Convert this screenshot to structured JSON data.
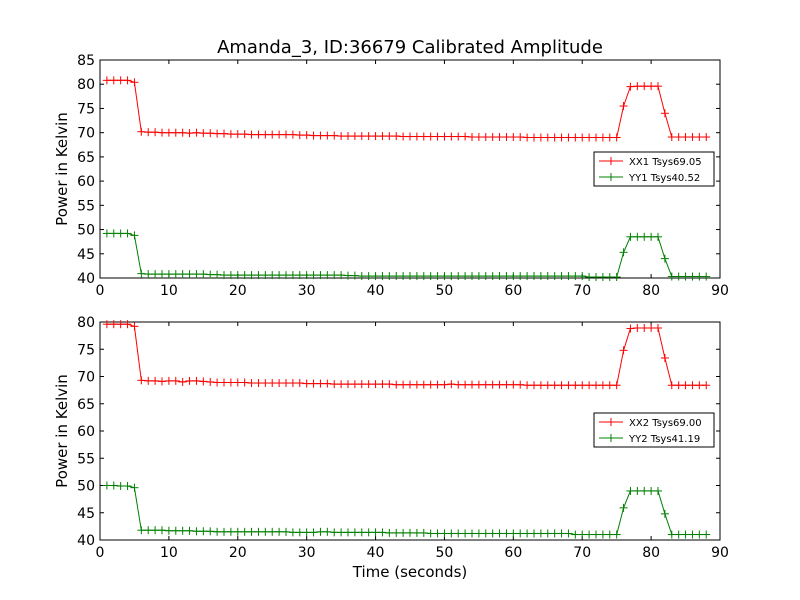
{
  "figure": {
    "title": "Amanda_3, ID:36679 Calibrated Amplitude"
  },
  "colors": {
    "xx": "#ff0000",
    "yy": "#008000"
  },
  "chart_data": [
    {
      "type": "line",
      "title": "Amanda_3, ID:36679 Calibrated Amplitude",
      "xlabel": "",
      "ylabel": "Power in Kelvin",
      "xlim": [
        0,
        90
      ],
      "ylim": [
        40,
        85
      ],
      "xticks": [
        0,
        10,
        20,
        30,
        40,
        50,
        60,
        70,
        80,
        90
      ],
      "yticks": [
        40,
        45,
        50,
        55,
        60,
        65,
        70,
        75,
        80,
        85
      ],
      "grid": false,
      "legend_position": "right",
      "x": [
        1,
        2,
        3,
        4,
        5,
        6,
        7,
        8,
        9,
        10,
        11,
        12,
        13,
        14,
        15,
        16,
        17,
        18,
        19,
        20,
        21,
        22,
        23,
        24,
        25,
        26,
        27,
        28,
        29,
        30,
        31,
        32,
        33,
        34,
        35,
        36,
        37,
        38,
        39,
        40,
        41,
        42,
        43,
        44,
        45,
        46,
        47,
        48,
        49,
        50,
        51,
        52,
        53,
        54,
        55,
        56,
        57,
        58,
        59,
        60,
        61,
        62,
        63,
        64,
        65,
        66,
        67,
        68,
        69,
        70,
        71,
        72,
        73,
        74,
        75,
        76,
        77,
        78,
        79,
        80,
        81,
        82,
        83,
        84,
        85,
        86,
        87,
        88
      ],
      "series": [
        {
          "name": "XX1 Tsys69.05",
          "color": "#ff0000",
          "values": [
            80.8,
            80.8,
            80.8,
            80.8,
            80.4,
            70.2,
            70.1,
            70.1,
            70.0,
            70.0,
            70.0,
            70.0,
            69.9,
            70.0,
            69.9,
            69.9,
            69.8,
            69.8,
            69.7,
            69.7,
            69.7,
            69.6,
            69.6,
            69.6,
            69.6,
            69.6,
            69.6,
            69.6,
            69.5,
            69.5,
            69.4,
            69.4,
            69.4,
            69.4,
            69.3,
            69.3,
            69.3,
            69.3,
            69.3,
            69.3,
            69.3,
            69.3,
            69.3,
            69.2,
            69.2,
            69.2,
            69.2,
            69.2,
            69.2,
            69.2,
            69.2,
            69.2,
            69.2,
            69.1,
            69.1,
            69.1,
            69.1,
            69.1,
            69.1,
            69.1,
            69.1,
            69.0,
            69.0,
            69.0,
            69.0,
            69.0,
            69.0,
            69.0,
            69.0,
            69.0,
            69.0,
            69.0,
            69.0,
            69.0,
            69.0,
            75.5,
            79.5,
            79.6,
            79.6,
            79.6,
            79.6,
            74.0,
            69.1,
            69.1,
            69.1,
            69.1,
            69.1,
            69.1
          ]
        },
        {
          "name": "YY1 Tsys40.52",
          "color": "#008000",
          "values": [
            49.2,
            49.2,
            49.2,
            49.2,
            48.8,
            40.9,
            40.8,
            40.8,
            40.8,
            40.8,
            40.8,
            40.8,
            40.8,
            40.8,
            40.8,
            40.7,
            40.7,
            40.6,
            40.6,
            40.6,
            40.6,
            40.6,
            40.6,
            40.6,
            40.6,
            40.6,
            40.6,
            40.6,
            40.6,
            40.6,
            40.6,
            40.6,
            40.6,
            40.6,
            40.6,
            40.5,
            40.5,
            40.4,
            40.4,
            40.4,
            40.4,
            40.4,
            40.4,
            40.4,
            40.4,
            40.4,
            40.4,
            40.4,
            40.4,
            40.4,
            40.4,
            40.4,
            40.4,
            40.4,
            40.4,
            40.4,
            40.4,
            40.4,
            40.4,
            40.4,
            40.4,
            40.4,
            40.4,
            40.4,
            40.4,
            40.4,
            40.4,
            40.4,
            40.4,
            40.4,
            40.2,
            40.2,
            40.2,
            40.2,
            40.2,
            45.3,
            48.5,
            48.5,
            48.5,
            48.5,
            48.5,
            44.0,
            40.3,
            40.3,
            40.3,
            40.3,
            40.3,
            40.3
          ]
        }
      ]
    },
    {
      "type": "line",
      "title": "",
      "xlabel": "Time (seconds)",
      "ylabel": "Power in Kelvin",
      "xlim": [
        0,
        90
      ],
      "ylim": [
        40,
        80
      ],
      "xticks": [
        0,
        10,
        20,
        30,
        40,
        50,
        60,
        70,
        80,
        90
      ],
      "yticks": [
        40,
        45,
        50,
        55,
        60,
        65,
        70,
        75,
        80
      ],
      "grid": false,
      "legend_position": "right",
      "x": [
        1,
        2,
        3,
        4,
        5,
        6,
        7,
        8,
        9,
        10,
        11,
        12,
        13,
        14,
        15,
        16,
        17,
        18,
        19,
        20,
        21,
        22,
        23,
        24,
        25,
        26,
        27,
        28,
        29,
        30,
        31,
        32,
        33,
        34,
        35,
        36,
        37,
        38,
        39,
        40,
        41,
        42,
        43,
        44,
        45,
        46,
        47,
        48,
        49,
        50,
        51,
        52,
        53,
        54,
        55,
        56,
        57,
        58,
        59,
        60,
        61,
        62,
        63,
        64,
        65,
        66,
        67,
        68,
        69,
        70,
        71,
        72,
        73,
        74,
        75,
        76,
        77,
        78,
        79,
        80,
        81,
        82,
        83,
        84,
        85,
        86,
        87,
        88
      ],
      "series": [
        {
          "name": "XX2 Tsys69.00",
          "color": "#ff0000",
          "values": [
            79.6,
            79.6,
            79.6,
            79.6,
            79.2,
            69.3,
            69.2,
            69.2,
            69.1,
            69.2,
            69.2,
            69.0,
            69.2,
            69.2,
            69.1,
            69.0,
            68.9,
            68.9,
            68.9,
            68.9,
            68.9,
            68.8,
            68.8,
            68.8,
            68.8,
            68.8,
            68.8,
            68.8,
            68.8,
            68.7,
            68.7,
            68.7,
            68.7,
            68.6,
            68.6,
            68.6,
            68.6,
            68.6,
            68.6,
            68.6,
            68.6,
            68.6,
            68.5,
            68.5,
            68.5,
            68.5,
            68.5,
            68.5,
            68.5,
            68.5,
            68.6,
            68.5,
            68.5,
            68.5,
            68.5,
            68.5,
            68.5,
            68.5,
            68.5,
            68.5,
            68.5,
            68.4,
            68.4,
            68.4,
            68.4,
            68.4,
            68.4,
            68.4,
            68.4,
            68.4,
            68.4,
            68.4,
            68.4,
            68.4,
            68.4,
            74.8,
            78.8,
            78.9,
            78.9,
            78.9,
            78.9,
            73.4,
            68.4,
            68.4,
            68.4,
            68.4,
            68.4,
            68.4
          ]
        },
        {
          "name": "YY2 Tsys41.19",
          "color": "#008000",
          "values": [
            50.0,
            50.0,
            49.9,
            49.9,
            49.6,
            41.8,
            41.8,
            41.8,
            41.8,
            41.7,
            41.7,
            41.7,
            41.7,
            41.6,
            41.6,
            41.6,
            41.5,
            41.5,
            41.5,
            41.5,
            41.5,
            41.5,
            41.5,
            41.5,
            41.5,
            41.5,
            41.5,
            41.4,
            41.4,
            41.4,
            41.4,
            41.5,
            41.5,
            41.4,
            41.4,
            41.4,
            41.4,
            41.4,
            41.4,
            41.4,
            41.4,
            41.3,
            41.3,
            41.3,
            41.3,
            41.3,
            41.3,
            41.2,
            41.2,
            41.2,
            41.2,
            41.2,
            41.2,
            41.2,
            41.2,
            41.2,
            41.2,
            41.2,
            41.2,
            41.2,
            41.2,
            41.2,
            41.2,
            41.2,
            41.2,
            41.2,
            41.2,
            41.2,
            41.0,
            41.0,
            41.0,
            41.0,
            41.0,
            41.0,
            41.0,
            45.9,
            49.0,
            49.0,
            49.0,
            49.0,
            49.0,
            44.8,
            41.0,
            41.0,
            41.0,
            41.0,
            41.0,
            41.0
          ]
        }
      ]
    }
  ]
}
